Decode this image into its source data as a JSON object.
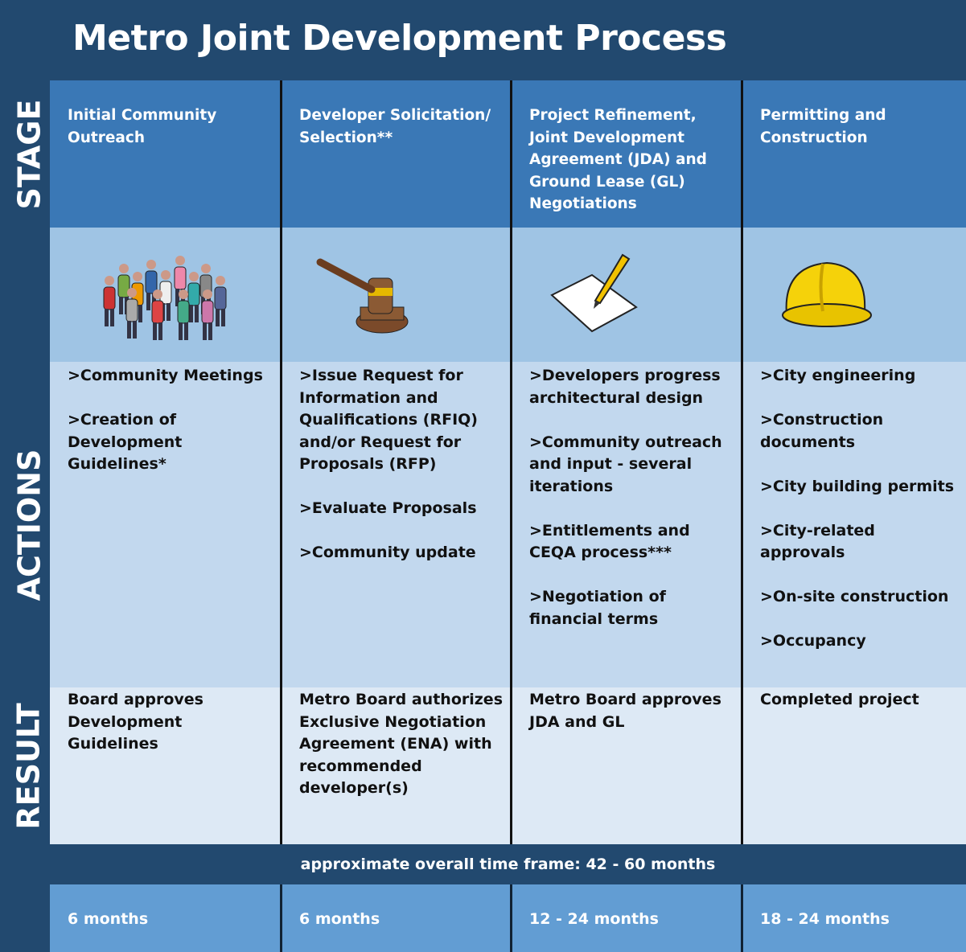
{
  "title": "Metro Joint Development Process",
  "row_labels": [
    "STAGE",
    "ACTIONS",
    "RESULT"
  ],
  "columns": [
    {
      "stage": "Initial Community Outreach",
      "actions": [
        ">Community Meetings",
        ">Creation of Development Guidelines*"
      ],
      "result": "Board approves Development Guidelines",
      "duration": "6 months"
    },
    {
      "stage": "Developer Solicitation/ Selection**",
      "actions": [
        ">Issue Request for Information and Qualifications (RFIQ) and/or Request for Proposals (RFP)",
        ">Evaluate Proposals",
        ">Community update"
      ],
      "result": "Metro Board authorizes Exclusive Negotiation Agreement (ENA) with recommended developer(s)",
      "duration": "6 months"
    },
    {
      "stage": "Project Refinement, Joint Development Agreement (JDA) and Ground Lease (GL) Negotiations",
      "actions": [
        ">Developers progress architectural design",
        ">Community outreach and input - several iterations",
        ">Entitlements and CEQA process***",
        ">Negotiation of financial terms"
      ],
      "result": "Metro Board approves JDA and GL",
      "duration": "12 - 24 months"
    },
    {
      "stage": "Permitting and Construction",
      "actions": [
        ">City engineering",
        ">Construction documents",
        ">City building permits",
        ">City-related approvals",
        ">On-site construction",
        ">Occupancy"
      ],
      "result": "Completed project",
      "duration": "18 - 24 months"
    }
  ],
  "time_frame": "approximate overall time frame: 42 - 60 months"
}
